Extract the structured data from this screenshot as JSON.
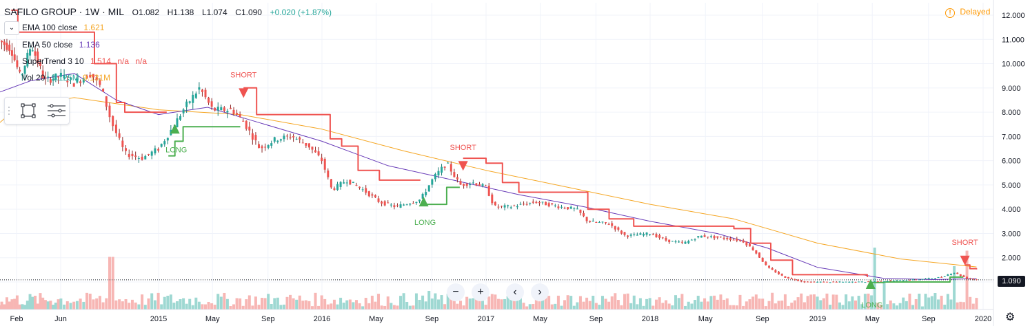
{
  "header": {
    "symbol": "SAFILO GROUP · 1W · MIL",
    "open": "O1.082",
    "high": "H1.138",
    "low": "L1.074",
    "close": "C1.090",
    "change": "+0.020 (+1.87%)"
  },
  "legend": {
    "ema100": {
      "name": "EMA 100 close",
      "value": "1.621",
      "color": "#f5a623"
    },
    "ema50": {
      "name": "EMA 50 close",
      "value": "1.136",
      "color": "#673ab7"
    },
    "supertrend": {
      "name": "SuperTrend 3 10",
      "value": "1.514",
      "na1": "n/a",
      "na2": "n/a",
      "color": "#ef5350"
    },
    "volume": {
      "name": "Vol 20",
      "value1": "9.125M",
      "value2": "9.131M"
    }
  },
  "status": {
    "delayed_label": "Delayed",
    "delayed_icon": "!"
  },
  "price_tag": "1.090",
  "nav": {
    "zoom_out": "−",
    "zoom_in": "+",
    "scroll_left": "‹",
    "scroll_right": "›"
  },
  "colors": {
    "up": "#26a69a",
    "down": "#ef5350",
    "supertrend_up": "#4caf50",
    "supertrend_down": "#ef5350",
    "ema100": "#f5a623",
    "ema50": "#673ab7"
  },
  "chart_data": {
    "type": "candlestick",
    "y_axis": {
      "ticks": [
        "1.000",
        "2.000",
        "3.000",
        "4.000",
        "5.000",
        "6.000",
        "7.000",
        "8.000",
        "9.000",
        "10.000",
        "11.000",
        "12.000"
      ],
      "min": 0.9,
      "max": 12.4,
      "position": "right"
    },
    "x_axis": {
      "ticks": [
        {
          "label": "Feb",
          "t": 2014.09
        },
        {
          "label": "Jun",
          "t": 2014.42
        },
        {
          "label": "2015",
          "t": 2015.0
        },
        {
          "label": "May",
          "t": 2015.33
        },
        {
          "label": "Sep",
          "t": 2015.67
        },
        {
          "label": "2016",
          "t": 2016.0
        },
        {
          "label": "May",
          "t": 2016.33
        },
        {
          "label": "Sep",
          "t": 2016.67
        },
        {
          "label": "2017",
          "t": 2017.0
        },
        {
          "label": "May",
          "t": 2017.33
        },
        {
          "label": "Sep",
          "t": 2017.67
        },
        {
          "label": "2018",
          "t": 2018.0
        },
        {
          "label": "May",
          "t": 2018.33
        },
        {
          "label": "Sep",
          "t": 2018.67
        },
        {
          "label": "2019",
          "t": 2019.0
        },
        {
          "label": "May",
          "t": 2019.33
        },
        {
          "label": "Sep",
          "t": 2019.67
        },
        {
          "label": "2020",
          "t": 2020.0
        }
      ]
    },
    "price_path": [
      [
        2013.95,
        11.0
      ],
      [
        2014.05,
        10.6
      ],
      [
        2014.12,
        9.4
      ],
      [
        2014.2,
        10.8
      ],
      [
        2014.3,
        9.3
      ],
      [
        2014.42,
        9.5
      ],
      [
        2014.5,
        9.2
      ],
      [
        2014.6,
        9.6
      ],
      [
        2014.66,
        9.0
      ],
      [
        2014.72,
        7.6
      ],
      [
        2014.8,
        6.3
      ],
      [
        2014.9,
        6.1
      ],
      [
        2015.0,
        6.5
      ],
      [
        2015.08,
        7.3
      ],
      [
        2015.16,
        8.2
      ],
      [
        2015.25,
        9.0
      ],
      [
        2015.33,
        8.1
      ],
      [
        2015.45,
        8.1
      ],
      [
        2015.52,
        7.6
      ],
      [
        2015.62,
        6.5
      ],
      [
        2015.72,
        6.9
      ],
      [
        2015.82,
        7.0
      ],
      [
        2015.92,
        6.6
      ],
      [
        2016.0,
        6.0
      ],
      [
        2016.06,
        4.8
      ],
      [
        2016.15,
        5.2
      ],
      [
        2016.25,
        4.8
      ],
      [
        2016.35,
        4.3
      ],
      [
        2016.45,
        4.1
      ],
      [
        2016.6,
        4.4
      ],
      [
        2016.68,
        5.3
      ],
      [
        2016.76,
        5.9
      ],
      [
        2016.84,
        5.0
      ],
      [
        2016.92,
        5.1
      ],
      [
        2017.0,
        4.9
      ],
      [
        2017.05,
        4.1
      ],
      [
        2017.15,
        4.1
      ],
      [
        2017.3,
        4.3
      ],
      [
        2017.45,
        4.1
      ],
      [
        2017.55,
        4.0
      ],
      [
        2017.62,
        3.5
      ],
      [
        2017.75,
        3.4
      ],
      [
        2017.85,
        2.9
      ],
      [
        2018.0,
        3.0
      ],
      [
        2018.1,
        2.7
      ],
      [
        2018.2,
        2.6
      ],
      [
        2018.3,
        2.9
      ],
      [
        2018.45,
        2.8
      ],
      [
        2018.55,
        2.7
      ],
      [
        2018.62,
        2.3
      ],
      [
        2018.7,
        1.6
      ],
      [
        2018.8,
        1.2
      ],
      [
        2018.92,
        1.0
      ],
      [
        2019.1,
        1.0
      ],
      [
        2019.25,
        1.0
      ],
      [
        2019.45,
        1.05
      ],
      [
        2019.6,
        1.1
      ],
      [
        2019.75,
        1.2
      ],
      [
        2019.82,
        1.4
      ],
      [
        2019.9,
        1.15
      ],
      [
        2019.96,
        1.09
      ]
    ],
    "ema100": [
      [
        2013.95,
        7.5
      ],
      [
        2014.1,
        8.2
      ],
      [
        2014.5,
        8.6
      ],
      [
        2015.0,
        8.1
      ],
      [
        2015.5,
        7.9
      ],
      [
        2016.0,
        7.3
      ],
      [
        2016.5,
        6.4
      ],
      [
        2017.0,
        5.6
      ],
      [
        2017.5,
        4.9
      ],
      [
        2018.0,
        4.2
      ],
      [
        2018.5,
        3.6
      ],
      [
        2019.0,
        2.6
      ],
      [
        2019.5,
        1.95
      ],
      [
        2019.96,
        1.62
      ]
    ],
    "ema50": [
      [
        2013.95,
        8.8
      ],
      [
        2014.2,
        9.3
      ],
      [
        2014.5,
        9.6
      ],
      [
        2014.75,
        8.5
      ],
      [
        2015.0,
        7.9
      ],
      [
        2015.3,
        8.2
      ],
      [
        2015.6,
        7.6
      ],
      [
        2016.0,
        6.8
      ],
      [
        2016.4,
        5.8
      ],
      [
        2016.8,
        5.2
      ],
      [
        2017.2,
        4.6
      ],
      [
        2017.6,
        4.1
      ],
      [
        2018.0,
        3.5
      ],
      [
        2018.4,
        3.0
      ],
      [
        2018.7,
        2.4
      ],
      [
        2019.0,
        1.6
      ],
      [
        2019.4,
        1.15
      ],
      [
        2019.7,
        1.1
      ],
      [
        2019.96,
        1.14
      ]
    ],
    "supertrend_segments": [
      {
        "trend": "down",
        "points": [
          [
            2014.05,
            12.2
          ],
          [
            2014.1,
            11.3
          ],
          [
            2014.55,
            11.3
          ],
          [
            2014.62,
            10.0
          ],
          [
            2014.75,
            8.4
          ],
          [
            2014.8,
            8.0
          ],
          [
            2015.05,
            8.0
          ]
        ]
      },
      {
        "trend": "up",
        "points": [
          [
            2015.06,
            6.2
          ],
          [
            2015.1,
            6.8
          ],
          [
            2015.15,
            7.4
          ],
          [
            2015.5,
            7.4
          ]
        ]
      },
      {
        "trend": "down",
        "points": [
          [
            2015.52,
            9.0
          ],
          [
            2015.6,
            7.9
          ],
          [
            2015.95,
            7.9
          ],
          [
            2016.05,
            6.9
          ],
          [
            2016.12,
            6.6
          ],
          [
            2016.22,
            5.6
          ],
          [
            2016.35,
            5.2
          ],
          [
            2016.6,
            5.2
          ]
        ]
      },
      {
        "trend": "up",
        "points": [
          [
            2016.62,
            4.2
          ],
          [
            2016.72,
            4.2
          ],
          [
            2016.76,
            4.9
          ],
          [
            2016.84,
            4.9
          ]
        ]
      },
      {
        "trend": "down",
        "points": [
          [
            2016.86,
            6.1
          ],
          [
            2017.0,
            5.9
          ],
          [
            2017.1,
            5.1
          ],
          [
            2017.2,
            4.7
          ],
          [
            2017.55,
            4.7
          ],
          [
            2017.62,
            4.0
          ],
          [
            2017.75,
            3.6
          ],
          [
            2017.9,
            3.3
          ],
          [
            2018.3,
            3.3
          ],
          [
            2018.5,
            3.2
          ],
          [
            2018.6,
            2.6
          ],
          [
            2018.72,
            1.9
          ],
          [
            2018.85,
            1.3
          ],
          [
            2019.3,
            1.2
          ]
        ]
      },
      {
        "trend": "up",
        "points": [
          [
            2019.32,
            0.98
          ],
          [
            2019.4,
            1.0
          ],
          [
            2019.5,
            1.0
          ],
          [
            2019.7,
            1.0
          ],
          [
            2019.8,
            1.2
          ],
          [
            2019.88,
            1.2
          ]
        ]
      },
      {
        "trend": "down",
        "points": [
          [
            2019.89,
            1.7
          ],
          [
            2019.92,
            1.55
          ],
          [
            2019.96,
            1.52
          ]
        ]
      }
    ],
    "signals": [
      {
        "type": "LONG",
        "t": 2015.1,
        "price": 7.4
      },
      {
        "type": "SHORT",
        "t": 2015.52,
        "price": 8.7
      },
      {
        "type": "LONG",
        "t": 2016.62,
        "price": 4.4
      },
      {
        "type": "SHORT",
        "t": 2016.86,
        "price": 5.7
      },
      {
        "type": "LONG",
        "t": 2019.32,
        "price": 1.0
      },
      {
        "type": "SHORT",
        "t": 2019.89,
        "price": 1.8
      }
    ],
    "volume_spikes": [
      {
        "t": 2014.72,
        "level": 0.85
      },
      {
        "t": 2019.35,
        "level": 1.0
      },
      {
        "t": 2019.9,
        "level": 0.95
      },
      {
        "t": 2019.82,
        "level": 0.7
      },
      {
        "t": 2019.4,
        "level": 0.45
      },
      {
        "t": 2016.65,
        "level": 0.3
      }
    ],
    "last_price": 1.09
  }
}
